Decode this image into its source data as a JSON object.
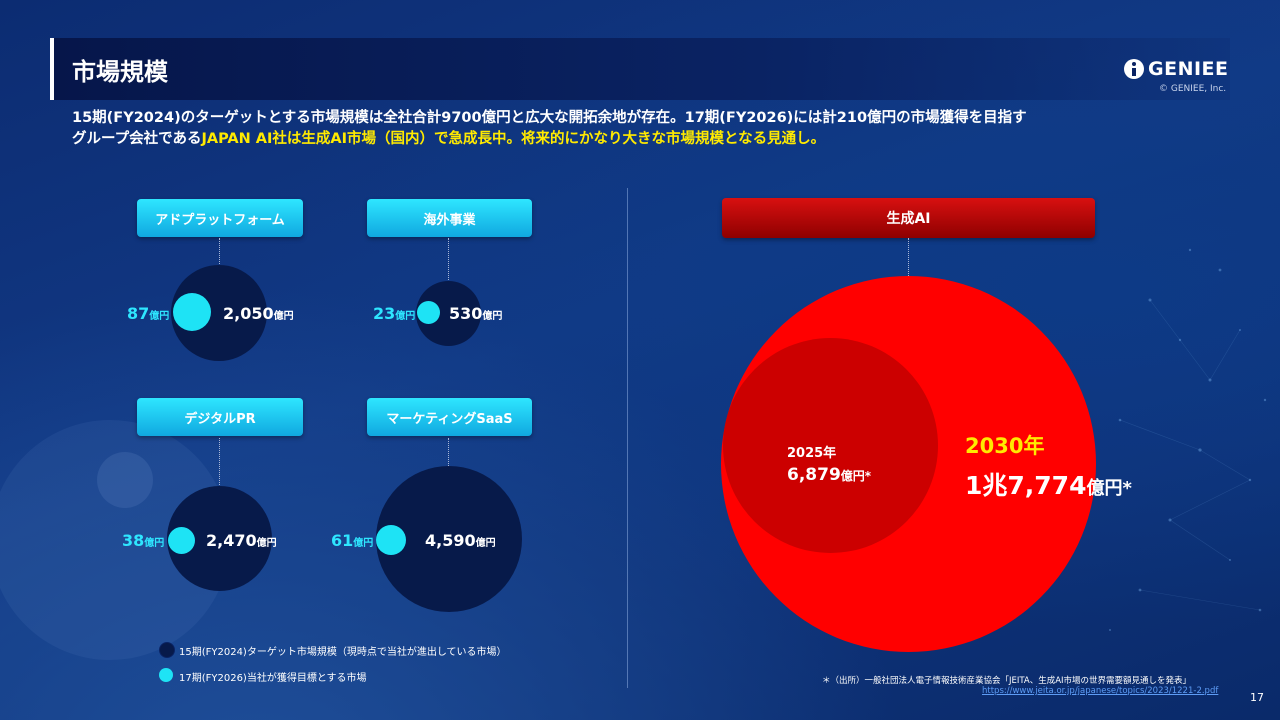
{
  "header": {
    "title": "市場規模",
    "logo": "GENIEE",
    "copyright": "© GENIEE, Inc."
  },
  "intro": {
    "line1": "15期(FY2024)のターゲットとする市場規模は全社合計9700億円と広大な開拓余地が存在。17期(FY2026)には計210億円の市場獲得を目指す",
    "line2_white": "グループ会社である",
    "line2_yellow": "JAPAN AI社は生成AI市場（国内）で急成長中。将来的にかなり大きな市場規模となる見通し。"
  },
  "legend": {
    "dark": "15期(FY2024)ターゲット市場規模（現時点で当社が進出している市場）",
    "cyan": "17期(FY2026)当社が獲得目標とする市場"
  },
  "colors": {
    "dark_circle": "#071a4a",
    "cyan_circle": "#1ee3f5",
    "genai_2030": "#ff0000",
    "genai_2025": "#cc0000",
    "highlight_yellow": "#ffea00"
  },
  "chart_data": [
    {
      "type": "bubble",
      "unit": "億円",
      "segments": [
        {
          "name": "アドプラットフォーム",
          "target_fy2024": 2050,
          "target_fy2024_label": "2,050",
          "goal_fy2026": 87,
          "goal_fy2026_label": "87"
        },
        {
          "name": "海外事業",
          "target_fy2024": 530,
          "target_fy2024_label": "530",
          "goal_fy2026": 23,
          "goal_fy2026_label": "23"
        },
        {
          "name": "デジタルPR",
          "target_fy2024": 2470,
          "target_fy2024_label": "2,470",
          "goal_fy2026": 38,
          "goal_fy2026_label": "38"
        },
        {
          "name": "マーケティングSaaS",
          "target_fy2024": 4590,
          "target_fy2024_label": "4,590",
          "goal_fy2026": 61,
          "goal_fy2026_label": "61"
        }
      ]
    },
    {
      "type": "bubble",
      "title": "生成AI",
      "points": [
        {
          "year": "2025年",
          "value": 6879,
          "value_label": "6,879",
          "unit": "億円*"
        },
        {
          "year": "2030年",
          "value": 17774,
          "value_label": "1兆7,774",
          "unit": "億円*"
        }
      ]
    }
  ],
  "footnote": {
    "text": "＊（出所）一般社団法人電子情報技術産業協会「JEITA、生成AI市場の世界需要額見通しを発表」",
    "link": "https://www.jeita.or.jp/japanese/topics/2023/1221-2.pdf"
  },
  "page_number": "17"
}
